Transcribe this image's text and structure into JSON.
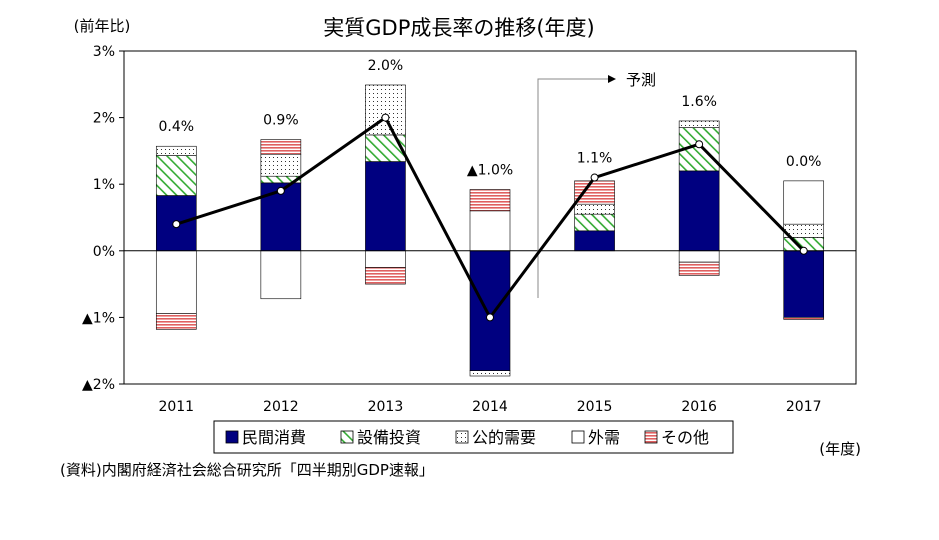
{
  "chart_data": {
    "type": "bar",
    "title": "実質GDP成長率の推移(年度)",
    "ylabel": "(前年比)",
    "xlabel": "(年度)",
    "source": "(資料)内閣府経済社会総合研究所「四半期別GDP速報」",
    "forecast_label": "予測",
    "ylim": [
      -2,
      3
    ],
    "y_ticks": [
      3,
      2,
      1,
      0,
      -1,
      -2
    ],
    "y_tick_labels": [
      "3%",
      "2%",
      "1%",
      "0%",
      "▲1%",
      "▲2%"
    ],
    "categories": [
      "2011",
      "2012",
      "2013",
      "2014",
      "2015",
      "2016",
      "2017"
    ],
    "stacked": true,
    "series": [
      {
        "name": "民間消費",
        "color": "#000080",
        "pattern": "solid",
        "values": [
          0.83,
          1.02,
          1.34,
          -1.8,
          0.3,
          1.2,
          -1.0
        ]
      },
      {
        "name": "設備投資",
        "color": "#33aa33",
        "pattern": "diagonal",
        "values": [
          0.6,
          0.1,
          0.4,
          0.0,
          0.25,
          0.65,
          0.2
        ]
      },
      {
        "name": "公的需要",
        "color": "#555555",
        "pattern": "dots",
        "values": [
          0.14,
          0.33,
          0.75,
          -0.08,
          0.15,
          0.1,
          0.2
        ]
      },
      {
        "name": "外需",
        "color": "#000000",
        "pattern": "empty",
        "values": [
          -0.94,
          -0.72,
          -0.25,
          0.6,
          0.0,
          -0.17,
          0.65
        ]
      },
      {
        "name": "その他",
        "color": "#e06060",
        "pattern": "hlines",
        "values": [
          -0.24,
          0.22,
          -0.25,
          0.32,
          0.35,
          -0.2,
          -0.03
        ]
      }
    ],
    "line_series": {
      "name": "実質GDP成長率",
      "values": [
        0.4,
        0.9,
        2.0,
        -1.0,
        1.1,
        1.6,
        0.0
      ],
      "labels": [
        "0.4%",
        "0.9%",
        "2.0%",
        "▲1.0%",
        "1.1%",
        "1.6%",
        "0.0%"
      ]
    },
    "grid": false,
    "legend_position": "bottom"
  }
}
